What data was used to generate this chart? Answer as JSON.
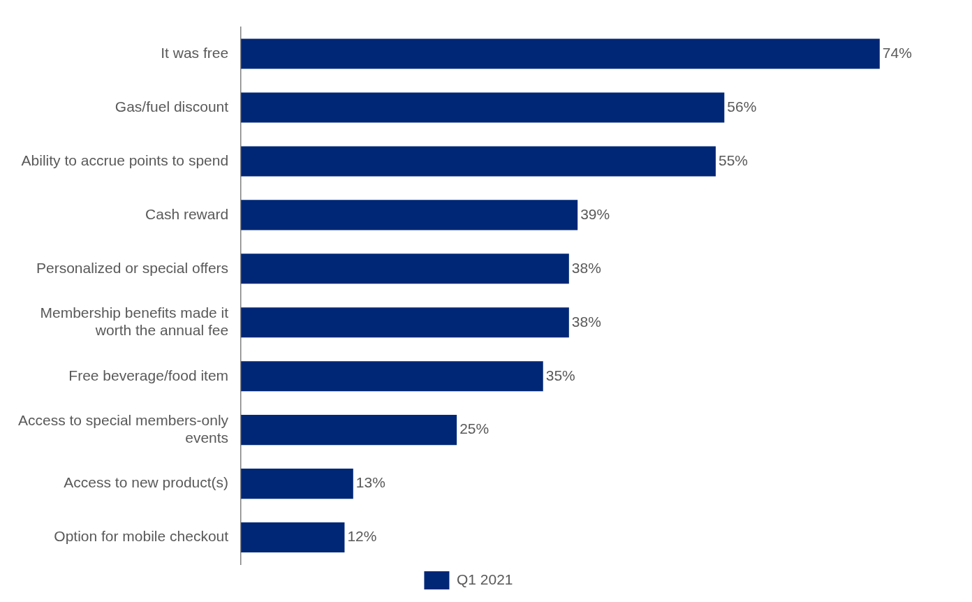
{
  "chart_data": {
    "type": "bar",
    "orientation": "horizontal",
    "categories": [
      "It was free",
      "Gas/fuel discount",
      "Ability to accrue points to spend",
      "Cash reward",
      "Personalized or special offers",
      "Membership benefits made it worth the annual fee",
      "Free beverage/food item",
      "Access to special members-only events",
      "Access to new product(s)",
      "Option for mobile checkout"
    ],
    "series": [
      {
        "name": "Q1 2021",
        "color": "#002776",
        "values": [
          74,
          56,
          55,
          39,
          38,
          38,
          35,
          25,
          13,
          12
        ],
        "value_labels": [
          "74%",
          "56%",
          "55%",
          "39%",
          "38%",
          "38%",
          "35%",
          "25%",
          "13%",
          "12%"
        ]
      }
    ],
    "legend": "bottom",
    "grid": false
  }
}
